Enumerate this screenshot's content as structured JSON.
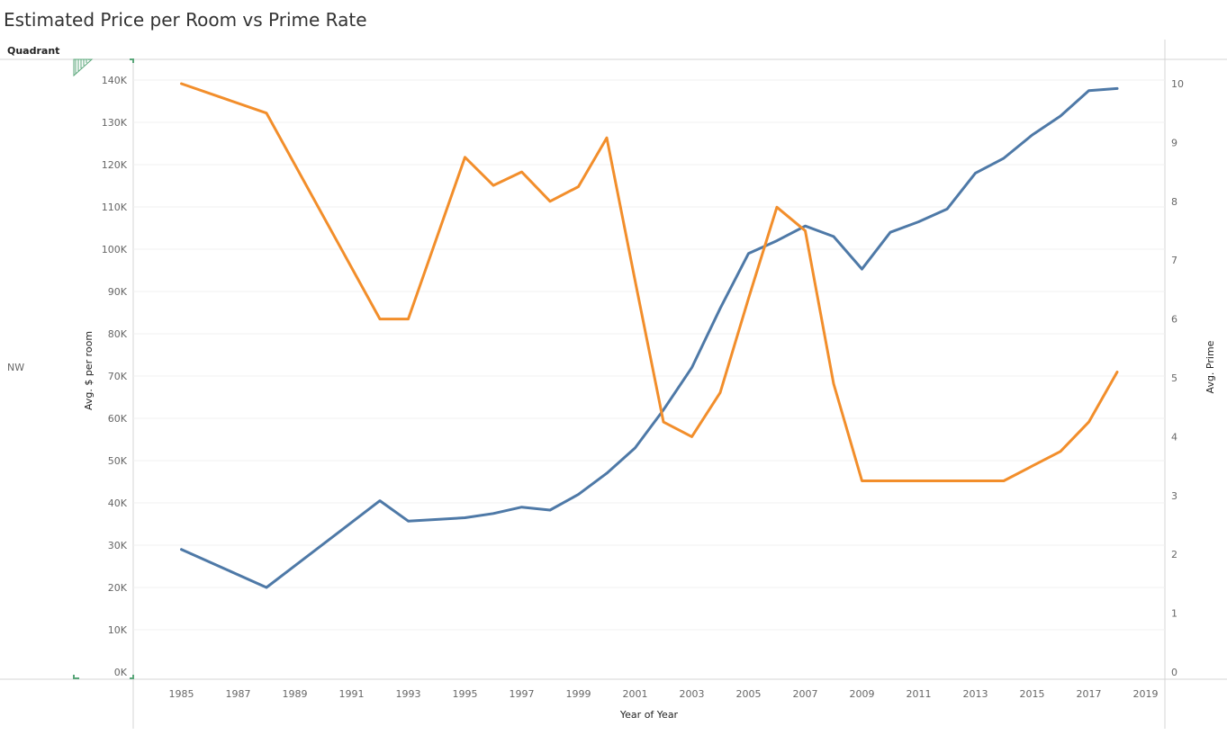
{
  "title": "Estimated Price per Room vs Prime Rate",
  "row_header": "Quadrant",
  "row_label": "NW",
  "colors": {
    "price": "#4e79a7",
    "prime": "#f28e2b",
    "grid": "#f0f0f0",
    "axis": "#cccccc",
    "marker": "#59a679"
  },
  "chart_data": {
    "type": "line",
    "title": "Estimated Price per Room vs Prime Rate",
    "xlabel": "Year of Year",
    "ylabel": "Avg. $ per room",
    "y2label": "Avg. Prime",
    "xlim": [
      1984,
      2020
    ],
    "ylim": [
      0,
      145000
    ],
    "y2lim": [
      0,
      10.75
    ],
    "xticks": [
      1985,
      1987,
      1989,
      1991,
      1993,
      1995,
      1997,
      1999,
      2001,
      2003,
      2005,
      2007,
      2009,
      2011,
      2013,
      2015,
      2017,
      2019
    ],
    "yticks": [
      {
        "value": 0,
        "label": "0K"
      },
      {
        "value": 10000,
        "label": "10K"
      },
      {
        "value": 20000,
        "label": "20K"
      },
      {
        "value": 30000,
        "label": "30K"
      },
      {
        "value": 40000,
        "label": "40K"
      },
      {
        "value": 50000,
        "label": "50K"
      },
      {
        "value": 60000,
        "label": "60K"
      },
      {
        "value": 70000,
        "label": "70K"
      },
      {
        "value": 80000,
        "label": "80K"
      },
      {
        "value": 90000,
        "label": "90K"
      },
      {
        "value": 100000,
        "label": "100K"
      },
      {
        "value": 110000,
        "label": "110K"
      },
      {
        "value": 120000,
        "label": "120K"
      },
      {
        "value": 130000,
        "label": "130K"
      },
      {
        "value": 140000,
        "label": "140K"
      }
    ],
    "y2ticks": [
      {
        "value": 0,
        "label": "0"
      },
      {
        "value": 1,
        "label": "1"
      },
      {
        "value": 2,
        "label": "2"
      },
      {
        "value": 3,
        "label": "3"
      },
      {
        "value": 4,
        "label": "4"
      },
      {
        "value": 5,
        "label": "5"
      },
      {
        "value": 6,
        "label": "6"
      },
      {
        "value": 7,
        "label": "7"
      },
      {
        "value": 8,
        "label": "8"
      },
      {
        "value": 9,
        "label": "9"
      },
      {
        "value": 10,
        "label": "10"
      }
    ],
    "series": [
      {
        "axis": "left",
        "color": "#4e79a7",
        "x": [
          1985,
          1988,
          1992,
          1993,
          1995,
          1996,
          1997,
          1998,
          1999,
          2000,
          2001,
          2002,
          2003,
          2004,
          2005,
          2006,
          2007,
          2008,
          2009,
          2010,
          2011,
          2012,
          2013,
          2014,
          2015,
          2016,
          2017,
          2018
        ],
        "values": [
          29000,
          20000,
          40500,
          35700,
          36500,
          37500,
          39000,
          38300,
          42000,
          47000,
          53000,
          62000,
          72000,
          86000,
          99000,
          102000,
          105500,
          103000,
          95300,
          104000,
          106500,
          109500,
          118000,
          121500,
          127000,
          131500,
          137500,
          138000
        ]
      },
      {
        "axis": "right",
        "color": "#f28e2b",
        "x": [
          1985,
          1988,
          1992,
          1993,
          1995,
          1996,
          1997,
          1998,
          1999,
          2000,
          2001,
          2002,
          2003,
          2004,
          2005,
          2006,
          2007,
          2008,
          2009,
          2010,
          2011,
          2012,
          2013,
          2014,
          2015,
          2016,
          2017,
          2018
        ],
        "values": [
          10.0,
          9.5,
          6.0,
          6.0,
          8.75,
          8.27,
          8.5,
          8.0,
          8.25,
          9.08,
          6.65,
          4.25,
          4.0,
          4.75,
          6.35,
          7.9,
          7.5,
          4.9,
          3.25,
          3.25,
          3.25,
          3.25,
          3.25,
          3.25,
          3.5,
          3.75,
          4.25,
          5.1
        ]
      }
    ]
  }
}
